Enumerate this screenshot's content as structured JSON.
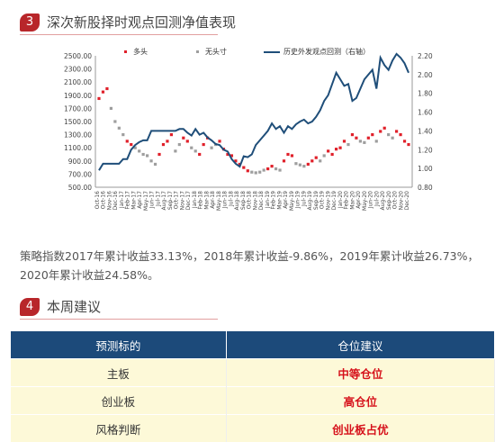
{
  "section1": {
    "number": "3",
    "title": "深次新股择时观点回测净值表现"
  },
  "chart_data": {
    "type": "line",
    "legend": [
      "多头",
      "无头寸",
      "历史外发观点回测（右轴）"
    ],
    "left_axis": {
      "ticks": [
        "2500.00",
        "2300.00",
        "2100.00",
        "1900.00",
        "1700.00",
        "1500.00",
        "1300.00",
        "1100.00",
        "900.00",
        "700.00",
        "500.00"
      ],
      "range": [
        500,
        2500
      ]
    },
    "right_axis": {
      "ticks": [
        "2.20",
        "2.00",
        "1.80",
        "1.60",
        "1.40",
        "1.20",
        "1.00",
        "0.80"
      ],
      "range": [
        0.8,
        2.2
      ]
    },
    "x_ticks": [
      "Oct-16",
      "Oct-16",
      "Nov-16",
      "Dec-16",
      "Jan-17",
      "Feb-17",
      "Mar-17",
      "Apr-17",
      "May-17",
      "Jun-17",
      "Jul-17",
      "Aug-17",
      "Sep-17",
      "Oct-17",
      "Nov-17",
      "Dec-17",
      "Jan-18",
      "Feb-18",
      "Mar-18",
      "Apr-18",
      "May-18",
      "Jun-18",
      "Jul-18",
      "Aug-18",
      "Sep-18",
      "Oct-18",
      "Nov-18",
      "Dec-18",
      "Jan-19",
      "Feb-19",
      "Mar-19",
      "Apr-19",
      "May-19",
      "Jun-19",
      "Jul-19",
      "Aug-19",
      "Sep-19",
      "Oct-19",
      "Nov-19",
      "Dec-19",
      "Jan-20",
      "Feb-20",
      "Mar-20",
      "Apr-20",
      "May-20",
      "Jun-20",
      "Jul-20",
      "Aug-20",
      "Sep-20",
      "Oct-20",
      "Nov-20",
      "Dec-20"
    ],
    "index_series": [
      1850,
      1950,
      2000,
      1700,
      1500,
      1400,
      1300,
      1200,
      1150,
      1100,
      1050,
      1000,
      980,
      900,
      850,
      1000,
      1150,
      1200,
      1300,
      1050,
      1150,
      1250,
      1200,
      1100,
      1050,
      1000,
      1150,
      1250,
      1100,
      1150,
      1200,
      1080,
      1000,
      980,
      900,
      850,
      800,
      750,
      730,
      720,
      730,
      760,
      780,
      820,
      780,
      760,
      900,
      1000,
      980,
      860,
      840,
      820,
      850,
      900,
      950,
      900,
      980,
      1050,
      1000,
      1080,
      1100,
      1200,
      1150,
      1300,
      1250,
      1200,
      1180,
      1250,
      1300,
      1200,
      1350,
      1400,
      1300,
      1250,
      1350,
      1300,
      1200,
      1150
    ],
    "nav_series": [
      0.98,
      1.05,
      1.05,
      1.05,
      1.05,
      1.05,
      1.1,
      1.1,
      1.2,
      1.25,
      1.28,
      1.3,
      1.3,
      1.4,
      1.4,
      1.4,
      1.4,
      1.4,
      1.4,
      1.4,
      1.42,
      1.42,
      1.38,
      1.35,
      1.42,
      1.36,
      1.38,
      1.33,
      1.3,
      1.26,
      1.25,
      1.2,
      1.18,
      1.1,
      1.05,
      1.02,
      1.13,
      1.12,
      1.15,
      1.25,
      1.3,
      1.35,
      1.4,
      1.48,
      1.42,
      1.45,
      1.38,
      1.45,
      1.42,
      1.47,
      1.5,
      1.52,
      1.48,
      1.5,
      1.55,
      1.62,
      1.72,
      1.78,
      1.9,
      2.02,
      1.95,
      1.88,
      1.9,
      1.72,
      1.75,
      1.85,
      1.95,
      2.0,
      2.05,
      1.85,
      2.18,
      2.1,
      2.05,
      2.15,
      2.22,
      2.18,
      2.12,
      2.02
    ],
    "long_mask": [
      1,
      1,
      1,
      0,
      0,
      0,
      0,
      1,
      1,
      0,
      0,
      0,
      0,
      0,
      0,
      1,
      1,
      1,
      1,
      0,
      0,
      1,
      1,
      0,
      0,
      1,
      1,
      1,
      0,
      0,
      1,
      1,
      1,
      1,
      1,
      1,
      1,
      1,
      0,
      0,
      0,
      0,
      1,
      1,
      0,
      0,
      1,
      1,
      1,
      0,
      0,
      0,
      1,
      1,
      1,
      0,
      0,
      1,
      1,
      1,
      1,
      1,
      0,
      1,
      1,
      0,
      0,
      1,
      1,
      0,
      1,
      1,
      0,
      0,
      1,
      1,
      1,
      1
    ]
  },
  "paragraph": "策略指数2017年累计收益33.13%，2018年累计收益-9.86%，2019年累计收益26.73%，2020年累计收益24.58%。",
  "section2": {
    "number": "4",
    "title": "本周建议"
  },
  "table": {
    "headers": [
      "预测标的",
      "仓位建议"
    ],
    "rows": [
      {
        "target": "主板",
        "advice": "中等仓位"
      },
      {
        "target": "创业板",
        "advice": "高仓位"
      },
      {
        "target": "风格判断",
        "advice": "创业板占优"
      }
    ]
  }
}
